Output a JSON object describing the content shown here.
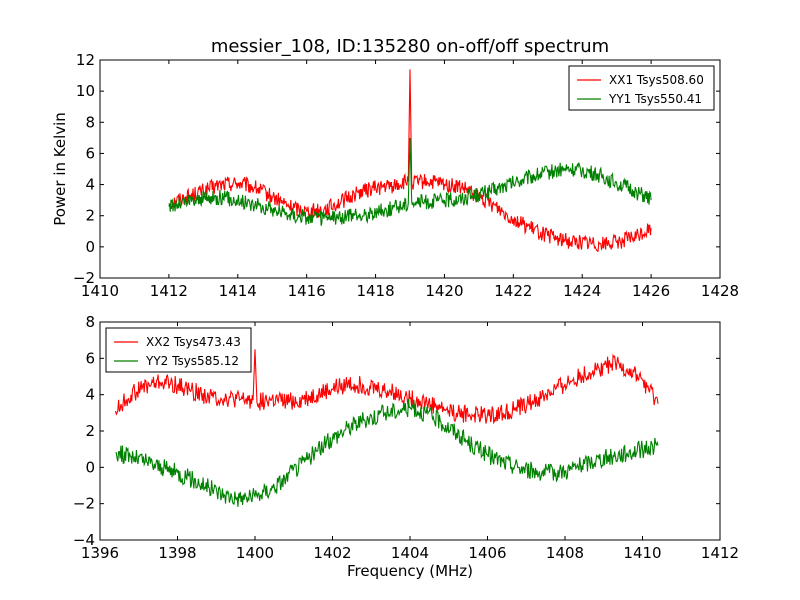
{
  "figure": {
    "title": "messier_108, ID:135280 on-off/off spectrum",
    "xlabel": "Frequency (MHz)",
    "ylabel": "Power in Kelvin"
  },
  "chart_data": [
    {
      "type": "line",
      "title": "messier_108, ID:135280 on-off/off spectrum",
      "xlabel": "",
      "ylabel": "Power in Kelvin",
      "xlim": [
        1410,
        1428
      ],
      "ylim": [
        -2,
        12
      ],
      "xticks": [
        1410,
        1412,
        1414,
        1416,
        1418,
        1420,
        1422,
        1424,
        1426,
        1428
      ],
      "yticks": [
        -2,
        0,
        2,
        4,
        6,
        8,
        10,
        12
      ],
      "grid": false,
      "legend": "top-right",
      "series": [
        {
          "name": "XX1 Tsys508.60",
          "color": "#ff0000",
          "x": [
            1412.0,
            1412.5,
            1413.0,
            1413.5,
            1414.0,
            1414.5,
            1415.0,
            1415.5,
            1416.0,
            1416.5,
            1417.0,
            1417.5,
            1418.0,
            1418.5,
            1418.95,
            1419.0,
            1419.05,
            1419.5,
            1420.0,
            1420.5,
            1421.0,
            1421.5,
            1422.0,
            1422.5,
            1423.0,
            1423.5,
            1424.0,
            1424.5,
            1425.0,
            1425.5,
            1426.0
          ],
          "y": [
            2.8,
            3.2,
            3.6,
            4.0,
            4.1,
            3.8,
            3.2,
            2.6,
            2.3,
            2.4,
            2.9,
            3.5,
            3.8,
            3.9,
            4.2,
            11.4,
            4.1,
            4.2,
            4.0,
            3.8,
            3.2,
            2.6,
            1.8,
            1.2,
            0.7,
            0.4,
            0.3,
            0.2,
            0.3,
            0.6,
            1.2
          ]
        },
        {
          "name": "YY1 Tsys550.41",
          "color": "#008000",
          "x": [
            1412.0,
            1412.5,
            1413.0,
            1413.5,
            1414.0,
            1414.5,
            1415.0,
            1415.5,
            1416.0,
            1416.5,
            1417.0,
            1417.5,
            1418.0,
            1418.5,
            1418.95,
            1419.0,
            1419.05,
            1419.5,
            1420.0,
            1420.5,
            1421.0,
            1421.5,
            1422.0,
            1422.5,
            1423.0,
            1423.5,
            1424.0,
            1424.5,
            1425.0,
            1425.5,
            1426.0
          ],
          "y": [
            2.6,
            2.9,
            3.1,
            3.2,
            3.0,
            2.7,
            2.4,
            2.1,
            1.9,
            1.8,
            1.9,
            2.0,
            2.2,
            2.5,
            2.8,
            7.0,
            2.9,
            2.9,
            3.0,
            3.1,
            3.4,
            3.7,
            4.1,
            4.5,
            4.8,
            5.0,
            4.9,
            4.6,
            4.1,
            3.6,
            3.0
          ]
        }
      ]
    },
    {
      "type": "line",
      "title": "",
      "xlabel": "Frequency (MHz)",
      "ylabel": "",
      "xlim": [
        1396,
        1412
      ],
      "ylim": [
        -4,
        8
      ],
      "xticks": [
        1396,
        1398,
        1400,
        1402,
        1404,
        1406,
        1408,
        1410,
        1412
      ],
      "yticks": [
        -4,
        -2,
        0,
        2,
        4,
        6,
        8
      ],
      "grid": false,
      "legend": "top-left",
      "series": [
        {
          "name": "XX2 Tsys473.43",
          "color": "#ff0000",
          "x": [
            1396.4,
            1396.8,
            1397.2,
            1397.6,
            1398.0,
            1398.4,
            1398.8,
            1399.2,
            1399.6,
            1399.95,
            1400.0,
            1400.05,
            1400.4,
            1400.8,
            1401.2,
            1401.6,
            1402.0,
            1402.4,
            1402.8,
            1403.2,
            1403.6,
            1404.0,
            1404.4,
            1404.8,
            1405.2,
            1405.6,
            1406.0,
            1406.4,
            1406.8,
            1407.2,
            1407.6,
            1408.0,
            1408.4,
            1408.8,
            1409.2,
            1409.6,
            1410.0,
            1410.4
          ],
          "y": [
            3.1,
            4.0,
            4.5,
            4.7,
            4.5,
            4.2,
            3.9,
            3.8,
            3.7,
            3.7,
            6.5,
            3.6,
            3.7,
            3.6,
            3.7,
            4.0,
            4.3,
            4.6,
            4.5,
            4.3,
            4.1,
            3.8,
            3.6,
            3.3,
            3.0,
            2.9,
            2.9,
            3.0,
            3.3,
            3.6,
            4.1,
            4.6,
            5.0,
            5.4,
            5.7,
            5.4,
            4.8,
            3.5
          ]
        },
        {
          "name": "YY2 Tsys585.12",
          "color": "#008000",
          "x": [
            1396.4,
            1396.8,
            1397.2,
            1397.6,
            1398.0,
            1398.4,
            1398.8,
            1399.2,
            1399.6,
            1400.0,
            1400.4,
            1400.8,
            1401.2,
            1401.6,
            1402.0,
            1402.4,
            1402.8,
            1403.2,
            1403.6,
            1404.0,
            1404.4,
            1404.8,
            1405.2,
            1405.6,
            1406.0,
            1406.4,
            1406.8,
            1407.2,
            1407.6,
            1408.0,
            1408.4,
            1408.8,
            1409.2,
            1409.6,
            1410.0,
            1410.4
          ],
          "y": [
            0.8,
            0.6,
            0.3,
            0.0,
            -0.3,
            -0.7,
            -1.1,
            -1.5,
            -1.7,
            -1.6,
            -1.2,
            -0.6,
            0.2,
            0.9,
            1.6,
            2.2,
            2.6,
            2.9,
            3.1,
            3.3,
            3.0,
            2.5,
            1.9,
            1.2,
            0.7,
            0.3,
            0.0,
            -0.2,
            -0.3,
            -0.2,
            0.1,
            0.4,
            0.6,
            0.8,
            1.0,
            1.2
          ]
        }
      ]
    }
  ]
}
